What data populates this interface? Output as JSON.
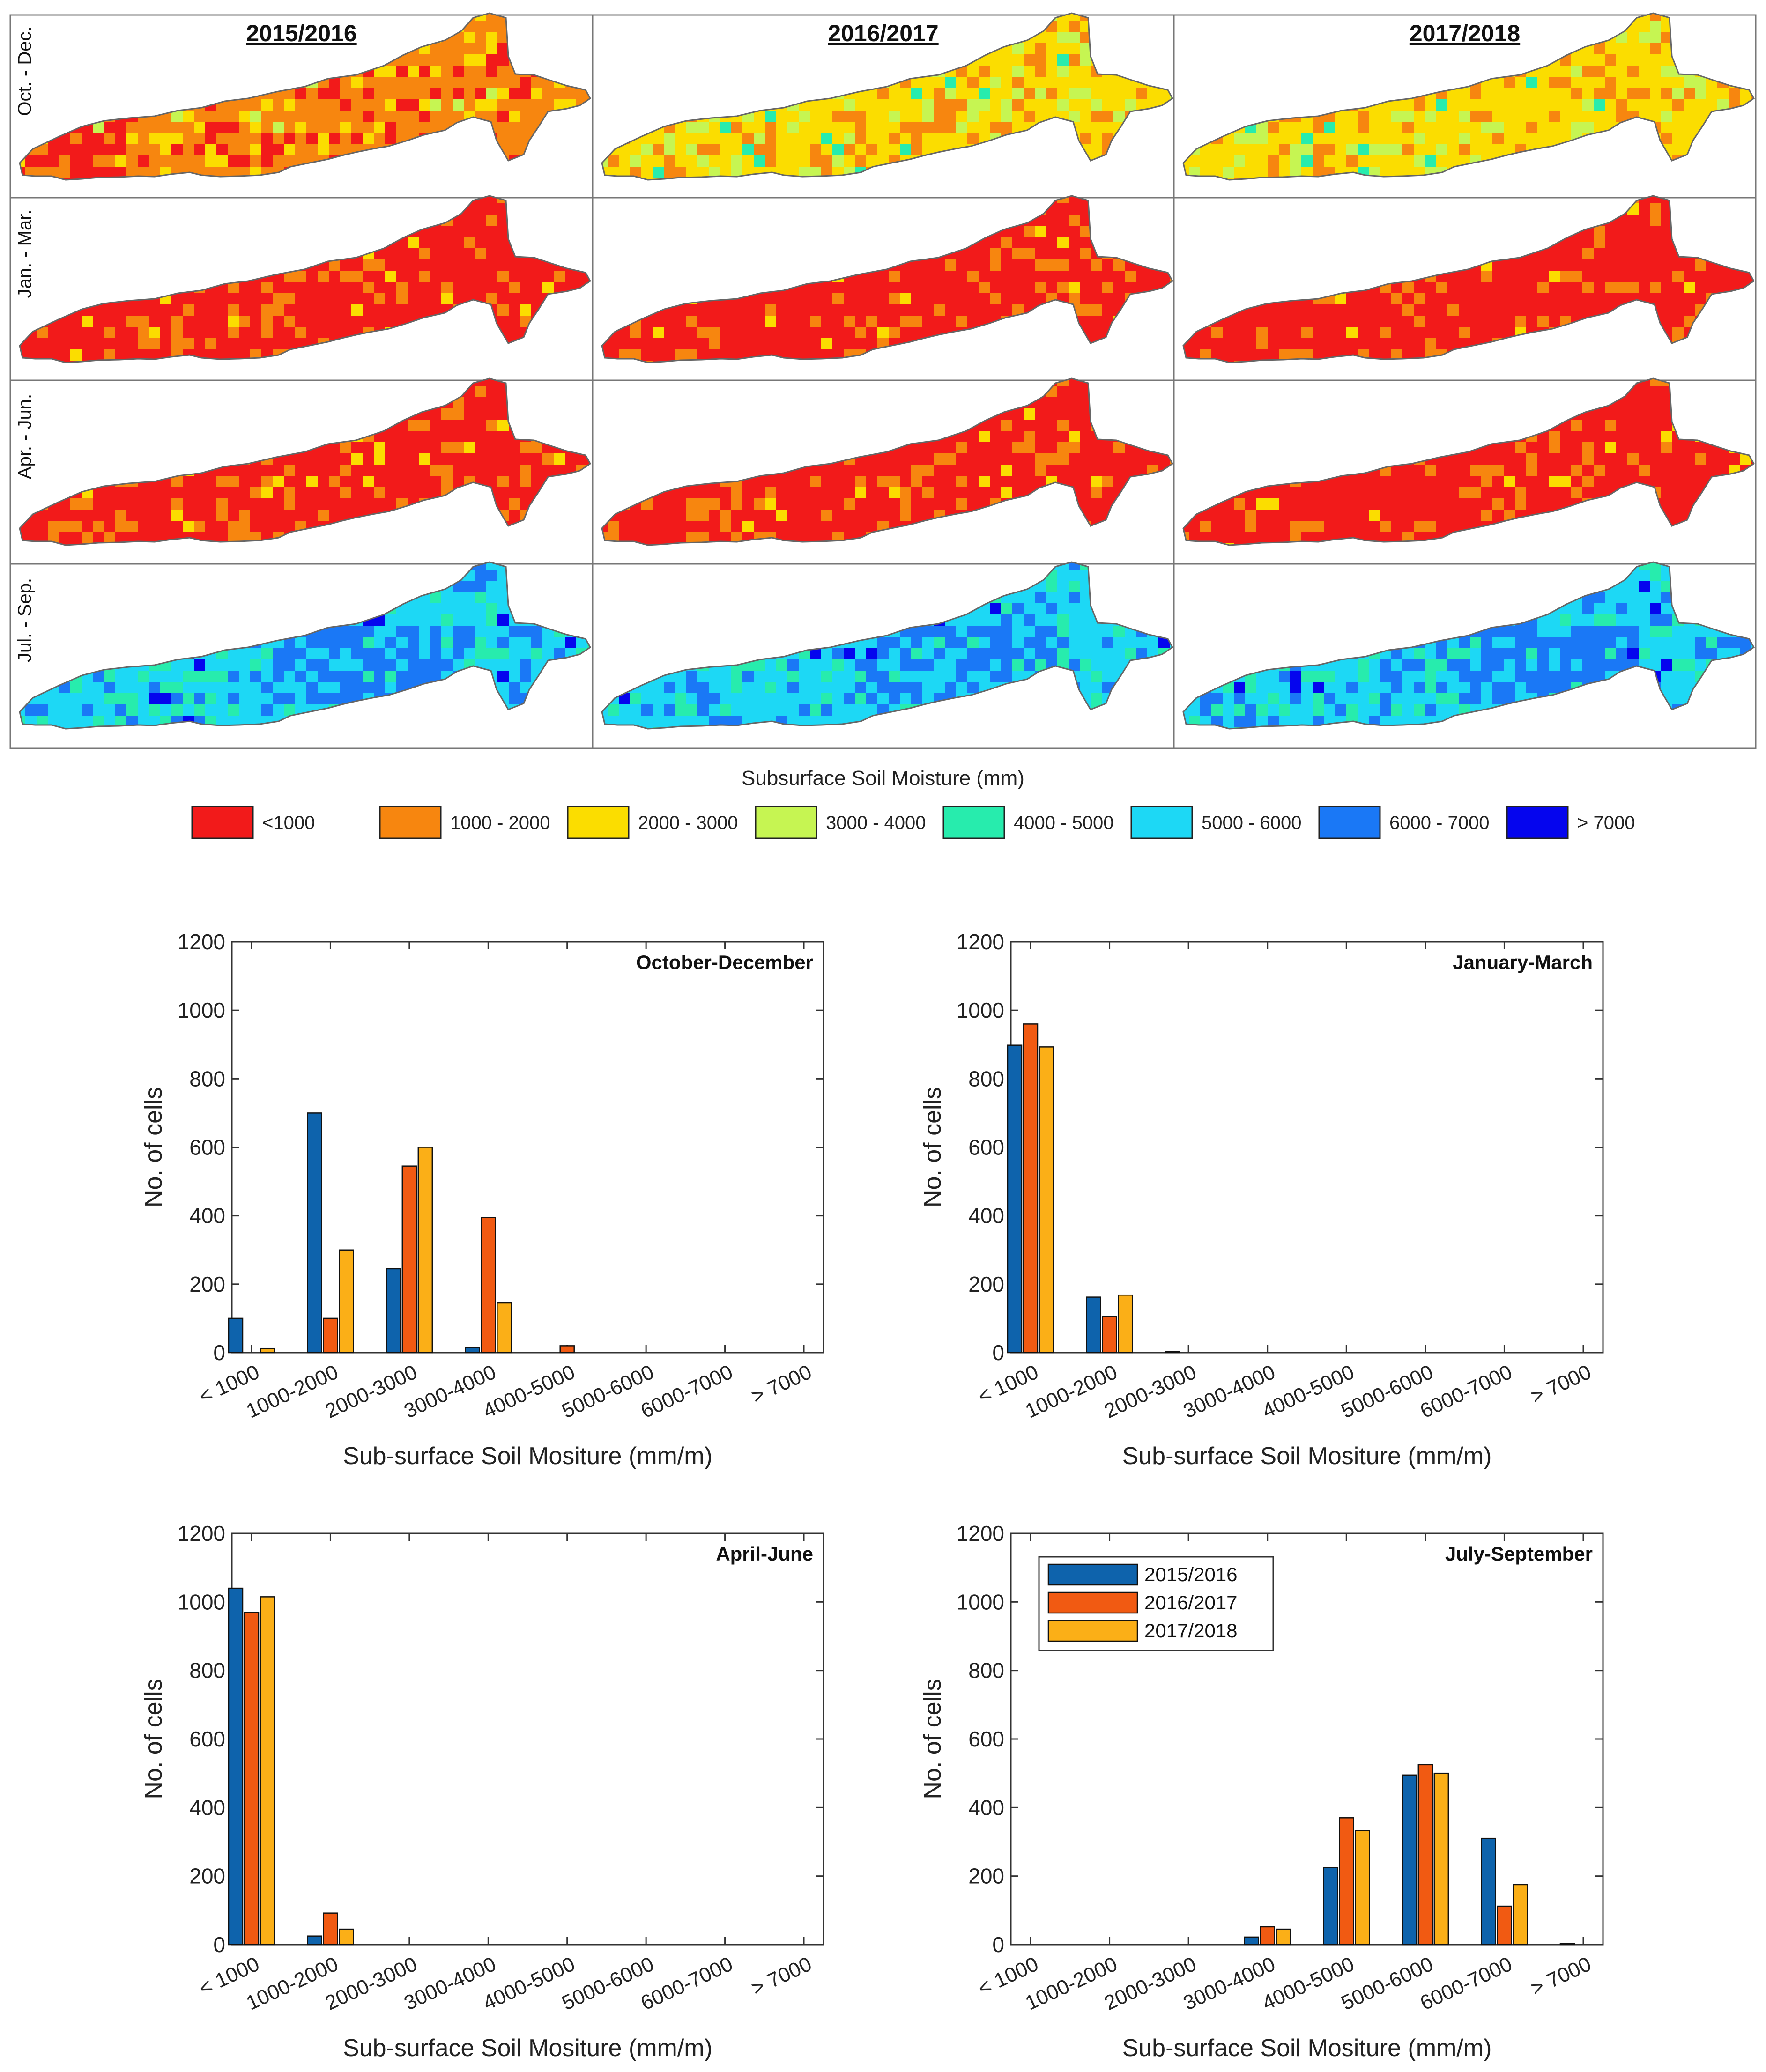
{
  "maps": {
    "years": [
      "2015/2016",
      "2016/2017",
      "2017/2018"
    ],
    "seasons": [
      "Oct. - Dec.",
      "Jan. - Mar.",
      "Apr. - Jun.",
      "Jul. - Sep."
    ],
    "dominant_class_by_season": [
      [
        "1000 - 2000",
        "2000 - 3000",
        "2000 - 3000"
      ],
      [
        "<1000",
        "<1000",
        "<1000"
      ],
      [
        "<1000",
        "<1000",
        "<1000"
      ],
      [
        "5000 - 6000",
        "5000 - 6000",
        "5000 - 6000"
      ]
    ],
    "legend_title": "Subsurface Soil Moisture (mm)",
    "legend": [
      {
        "label": "<1000",
        "color": "#f21a1a"
      },
      {
        "label": "1000 - 2000",
        "color": "#f7860f"
      },
      {
        "label": "2000 - 3000",
        "color": "#fbdd00"
      },
      {
        "label": "3000 - 4000",
        "color": "#c6f552"
      },
      {
        "label": "4000 - 5000",
        "color": "#27ecad"
      },
      {
        "label": "5000 - 6000",
        "color": "#1dd8f5"
      },
      {
        "label": "6000 - 7000",
        "color": "#1a78f6"
      },
      {
        "label": "> 7000",
        "color": "#0505ee"
      }
    ]
  },
  "chart_data": [
    {
      "type": "bar",
      "title": "October-December",
      "categories": [
        "< 1000",
        "1000-2000",
        "2000-3000",
        "3000-4000",
        "4000-5000",
        "5000-6000",
        "6000-7000",
        "> 7000"
      ],
      "series": [
        {
          "name": "2015/2016",
          "values": [
            100,
            700,
            245,
            15,
            0,
            0,
            0,
            0
          ]
        },
        {
          "name": "2016/2017",
          "values": [
            0,
            100,
            545,
            395,
            20,
            0,
            0,
            0
          ]
        },
        {
          "name": "2017/2018",
          "values": [
            12,
            300,
            600,
            145,
            0,
            0,
            0,
            0
          ]
        }
      ],
      "xlabel": "Sub-surface Soil Mositure (mm/m)",
      "ylabel": "No. of cells",
      "ylim": [
        0,
        1200
      ],
      "yticks": [
        "0",
        "200",
        "400",
        "600",
        "800",
        "1000",
        "1200"
      ],
      "legend": false
    },
    {
      "type": "bar",
      "title": "January-March",
      "categories": [
        "< 1000",
        "1000-2000",
        "2000-3000",
        "3000-4000",
        "4000-5000",
        "5000-6000",
        "6000-7000",
        "> 7000"
      ],
      "series": [
        {
          "name": "2015/2016",
          "values": [
            898,
            162,
            3,
            0,
            0,
            0,
            0,
            0
          ]
        },
        {
          "name": "2016/2017",
          "values": [
            960,
            105,
            0,
            0,
            0,
            0,
            0,
            0
          ]
        },
        {
          "name": "2017/2018",
          "values": [
            893,
            168,
            0,
            0,
            0,
            0,
            0,
            0
          ]
        }
      ],
      "xlabel": "Sub-surface Soil Mositure (mm/m)",
      "ylabel": "No. of cells",
      "ylim": [
        0,
        1200
      ],
      "yticks": [
        "0",
        "200",
        "400",
        "600",
        "800",
        "1000",
        "1200"
      ],
      "legend": false
    },
    {
      "type": "bar",
      "title": "April-June",
      "categories": [
        "< 1000",
        "1000-2000",
        "2000-3000",
        "3000-4000",
        "4000-5000",
        "5000-6000",
        "6000-7000",
        "> 7000"
      ],
      "series": [
        {
          "name": "2015/2016",
          "values": [
            1040,
            25,
            0,
            0,
            0,
            0,
            0,
            0
          ]
        },
        {
          "name": "2016/2017",
          "values": [
            970,
            92,
            0,
            0,
            0,
            0,
            0,
            0
          ]
        },
        {
          "name": "2017/2018",
          "values": [
            1015,
            45,
            0,
            0,
            0,
            0,
            0,
            0
          ]
        }
      ],
      "xlabel": "Sub-surface Soil Mositure (mm/m)",
      "ylabel": "No. of cells",
      "ylim": [
        0,
        1200
      ],
      "yticks": [
        "0",
        "200",
        "400",
        "600",
        "800",
        "1000",
        "1200"
      ],
      "legend": false
    },
    {
      "type": "bar",
      "title": "July-September",
      "categories": [
        "< 1000",
        "1000-2000",
        "2000-3000",
        "3000-4000",
        "4000-5000",
        "5000-6000",
        "6000-7000",
        "> 7000"
      ],
      "series": [
        {
          "name": "2015/2016",
          "values": [
            0,
            0,
            0,
            22,
            225,
            495,
            310,
            3
          ]
        },
        {
          "name": "2016/2017",
          "values": [
            0,
            0,
            0,
            52,
            370,
            525,
            112,
            0
          ]
        },
        {
          "name": "2017/2018",
          "values": [
            0,
            0,
            0,
            45,
            333,
            500,
            175,
            0
          ]
        }
      ],
      "xlabel": "Sub-surface Soil Mositure (mm/m)",
      "ylabel": "No. of cells",
      "ylim": [
        0,
        1200
      ],
      "yticks": [
        "0",
        "200",
        "400",
        "600",
        "800",
        "1000",
        "1200"
      ],
      "legend": true,
      "legend_position": "top-left"
    }
  ],
  "series_colors": [
    "#0e63ac",
    "#f15a12",
    "#fbaf17"
  ]
}
